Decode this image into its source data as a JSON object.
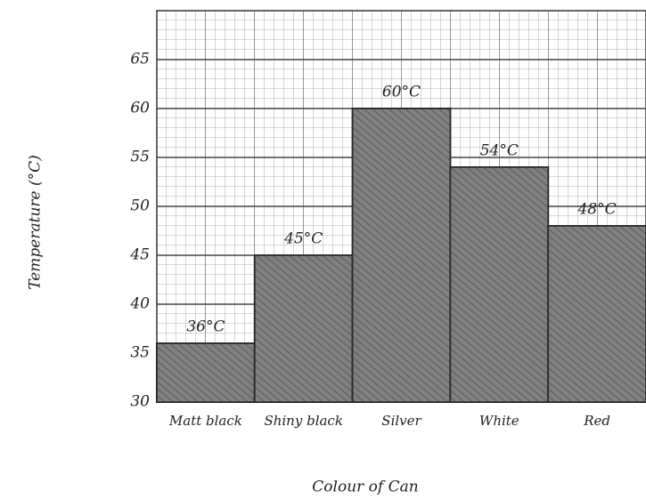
{
  "chart_data": {
    "type": "bar",
    "y_label": "Temperature (°C)",
    "x_label": "Colour of Can",
    "categories": [
      "Matt black",
      "Shiny black",
      "Silver",
      "White",
      "Red"
    ],
    "values": [
      36,
      45,
      60,
      54,
      48
    ],
    "value_labels": [
      "36°C",
      "45°C",
      "60°C",
      "54°C",
      "48°C"
    ],
    "color": "#707070",
    "ylim": [
      30,
      70
    ],
    "yticks": [
      30,
      35,
      40,
      45,
      50,
      55,
      60,
      65
    ],
    "grid": true
  }
}
